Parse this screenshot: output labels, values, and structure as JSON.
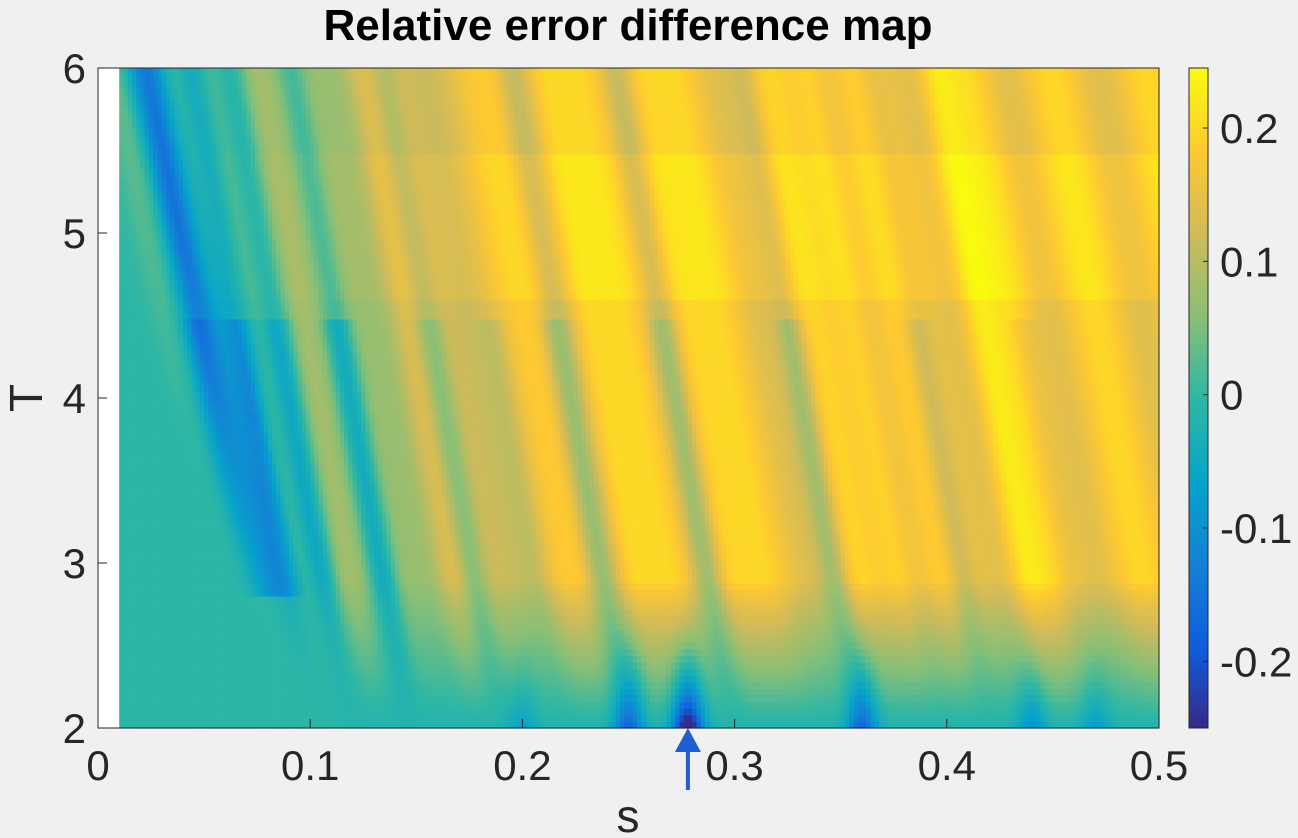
{
  "chart_data": {
    "type": "heatmap",
    "title": "Relative error difference map",
    "xlabel": "s",
    "ylabel": "T",
    "xlim": [
      0,
      0.5
    ],
    "ylim": [
      2,
      6
    ],
    "x_ticks": [
      "0",
      "0.1",
      "0.2",
      "0.3",
      "0.4",
      "0.5"
    ],
    "y_ticks": [
      "2",
      "3",
      "4",
      "5",
      "6"
    ],
    "colorbar": {
      "clim": [
        -0.25,
        0.245
      ],
      "ticks": [
        "-0.2",
        "-0.1",
        "0",
        "0.1",
        "0.2"
      ],
      "colormap": "parula"
    },
    "data_x_range": [
      0.01,
      0.5
    ],
    "annotation": {
      "type": "arrow",
      "x": 0.278,
      "color": "#1f5fd6"
    },
    "colors": {
      "background": "#f0f0f0",
      "plot_blank": "#ffffff",
      "axis": "#262626"
    }
  }
}
